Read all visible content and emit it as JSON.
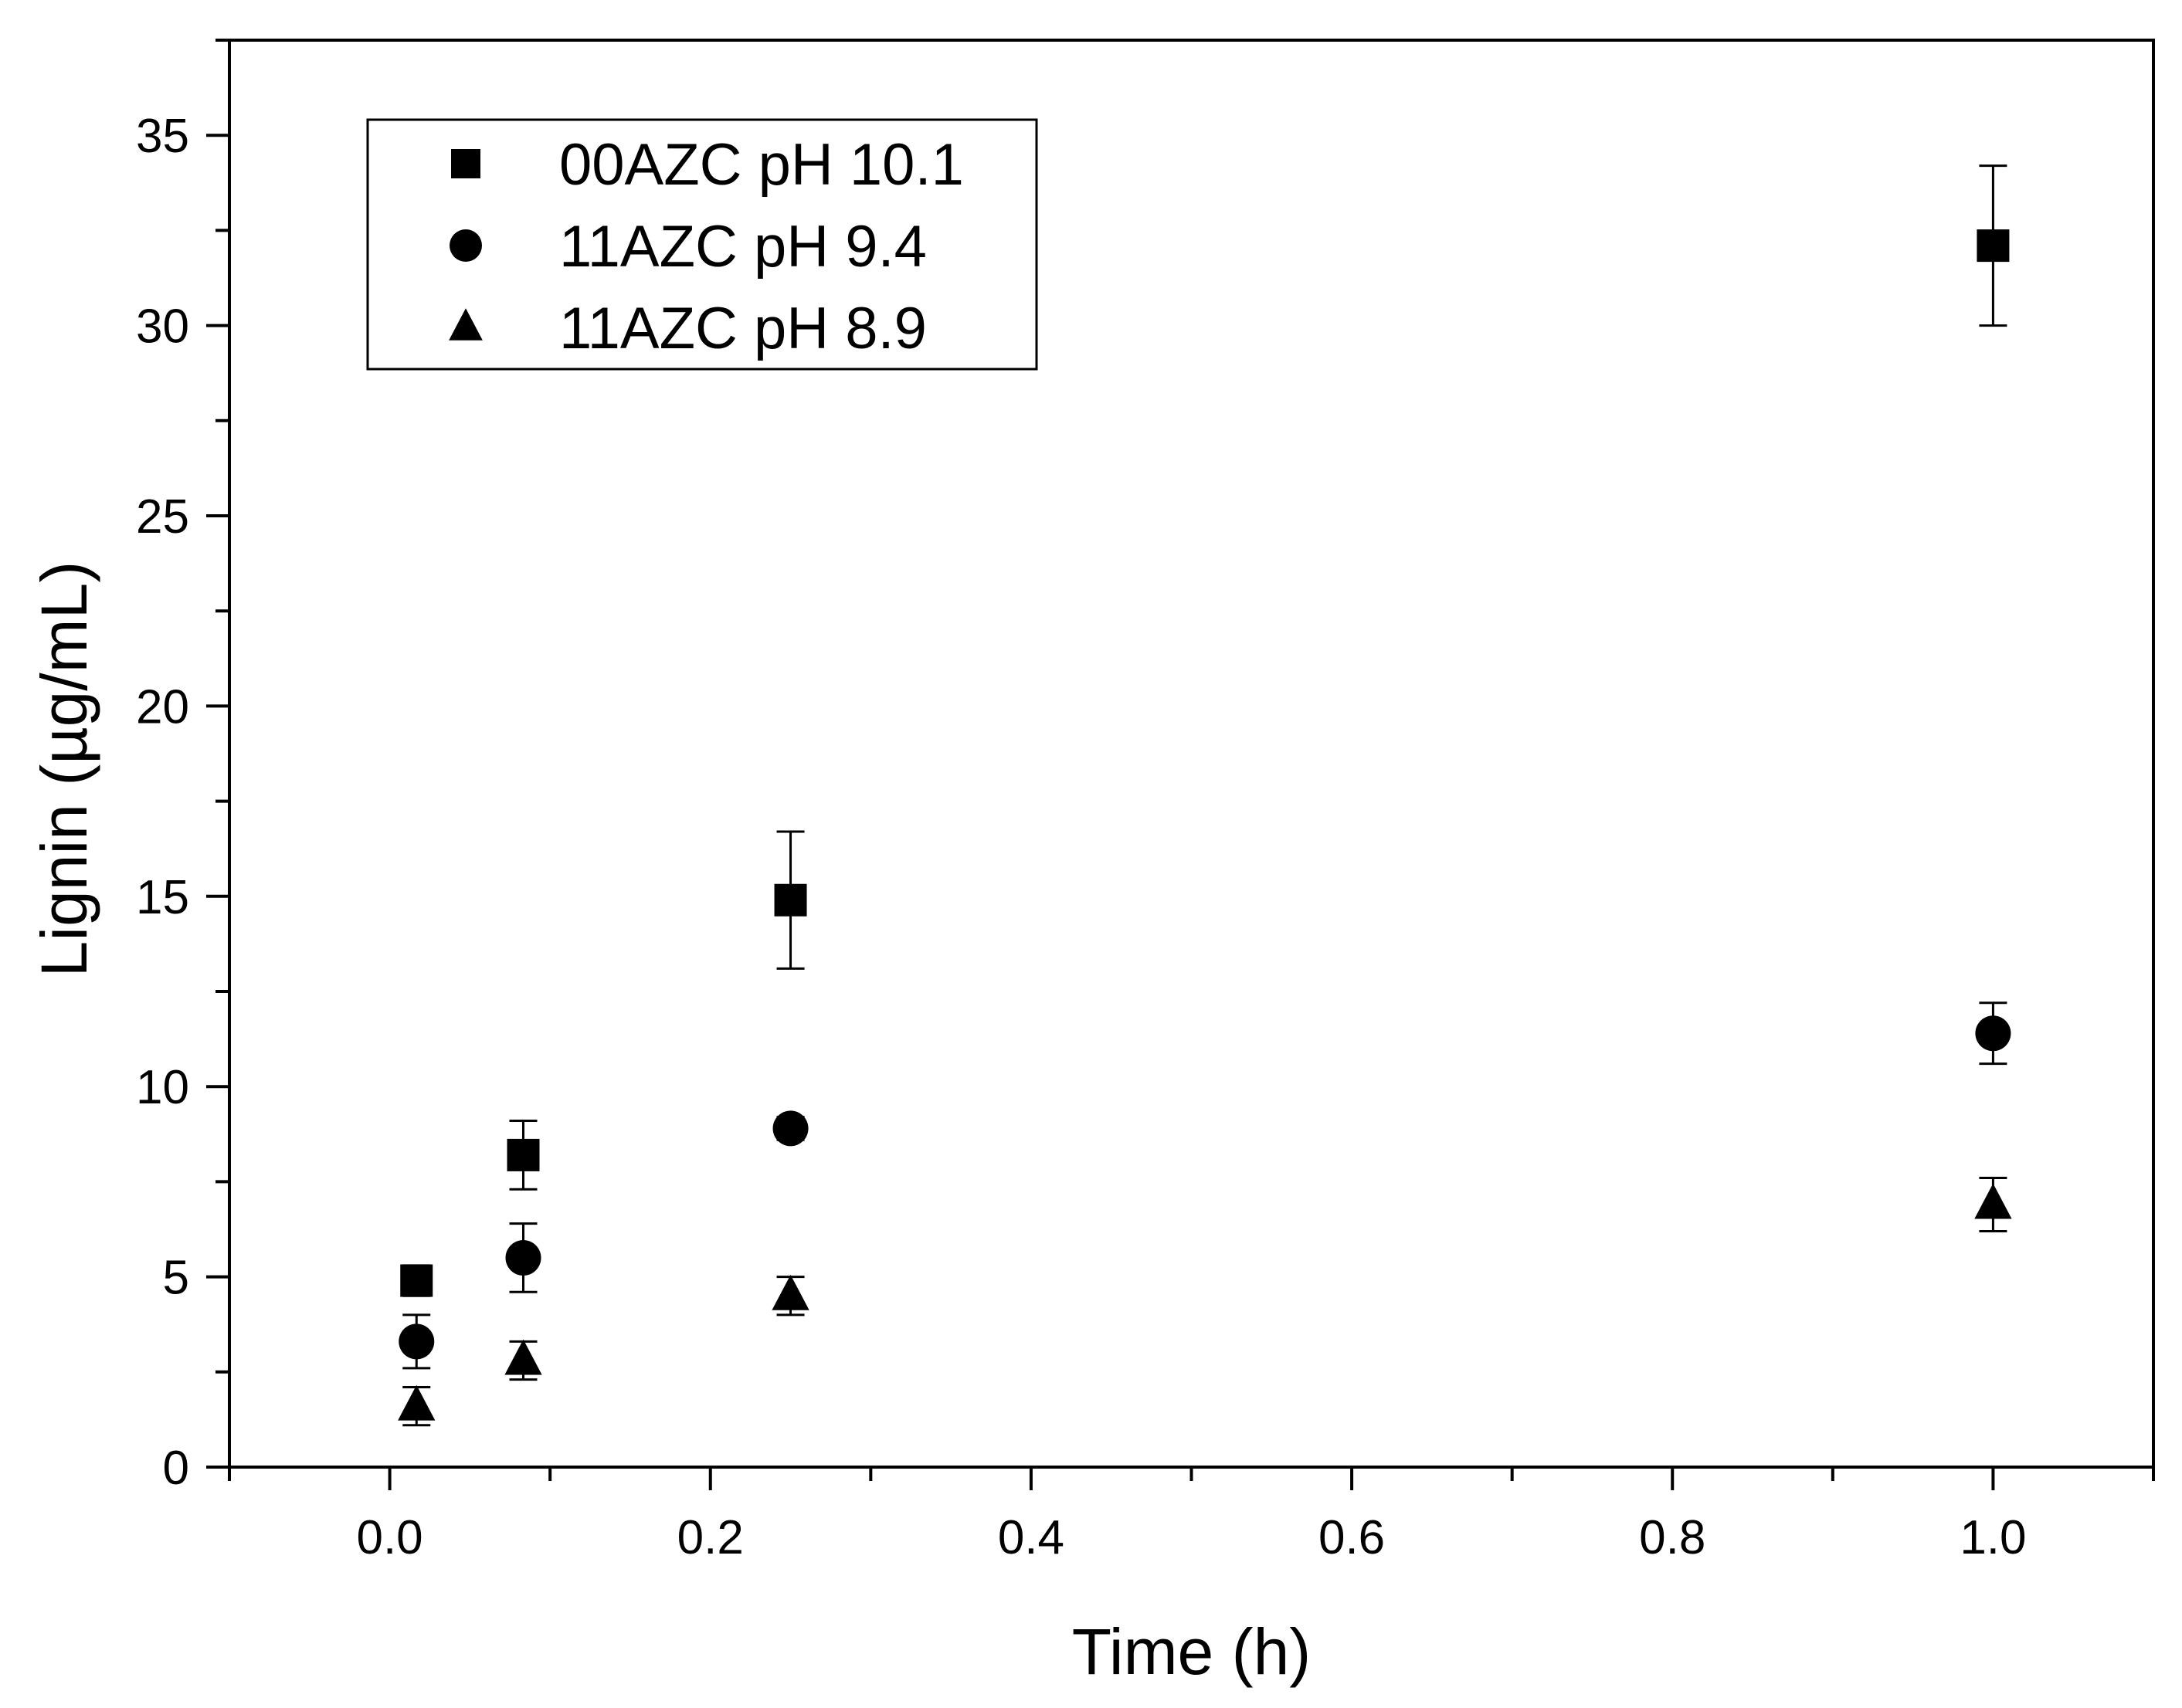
{
  "chart_data": {
    "type": "scatter",
    "title": "",
    "xlabel": "Time (h)",
    "ylabel": "Lignin (µg/mL)",
    "xlim": [
      -0.1,
      1.1
    ],
    "ylim": [
      0,
      37.5
    ],
    "xticks": [
      "0.0",
      "0.2",
      "0.4",
      "0.6",
      "0.8",
      "1.0"
    ],
    "xtick_values": [
      0.0,
      0.2,
      0.4,
      0.6,
      0.8,
      1.0
    ],
    "yticks": [
      "0",
      "5",
      "10",
      "15",
      "20",
      "25",
      "30",
      "35"
    ],
    "ytick_values": [
      0,
      5,
      10,
      15,
      20,
      25,
      30,
      35
    ],
    "legend_position": "top-left",
    "series": [
      {
        "name": "00AZC pH 10.1",
        "marker": "square",
        "x": [
          0.0167,
          0.0833,
          0.25,
          1.0
        ],
        "y": [
          4.9,
          8.2,
          14.9,
          32.1
        ],
        "err": [
          0.4,
          0.9,
          1.8,
          2.1
        ]
      },
      {
        "name": "11AZC pH 9.4",
        "marker": "circle",
        "x": [
          0.0167,
          0.0833,
          0.25,
          1.0
        ],
        "y": [
          3.3,
          5.5,
          8.9,
          11.4
        ],
        "err": [
          0.7,
          0.9,
          0.3,
          0.8
        ]
      },
      {
        "name": "11AZC pH 8.9",
        "marker": "triangle",
        "x": [
          0.0167,
          0.0833,
          0.25,
          1.0
        ],
        "y": [
          1.6,
          2.8,
          4.5,
          6.9
        ],
        "err": [
          0.5,
          0.5,
          0.5,
          0.7
        ]
      }
    ]
  }
}
